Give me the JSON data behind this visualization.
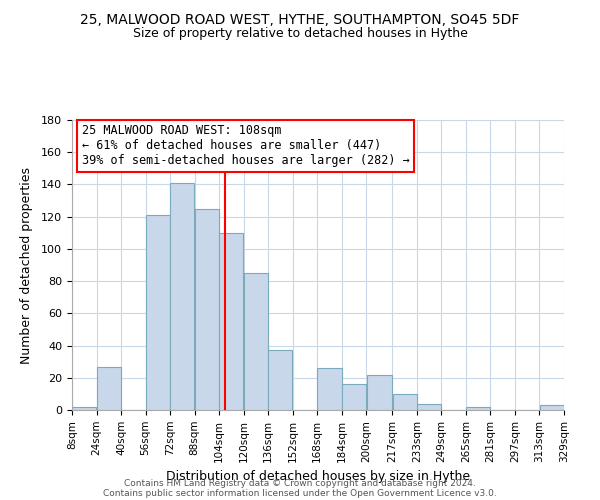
{
  "title": "25, MALWOOD ROAD WEST, HYTHE, SOUTHAMPTON, SO45 5DF",
  "subtitle": "Size of property relative to detached houses in Hythe",
  "xlabel": "Distribution of detached houses by size in Hythe",
  "ylabel": "Number of detached properties",
  "bar_color": "#c8d8ea",
  "bar_edgecolor": "#7aaabb",
  "grid_color": "#c8d8e8",
  "vline_x": 108,
  "vline_color": "red",
  "annotation_title": "25 MALWOOD ROAD WEST: 108sqm",
  "annotation_line1": "← 61% of detached houses are smaller (447)",
  "annotation_line2": "39% of semi-detached houses are larger (282) →",
  "annotation_box_edgecolor": "red",
  "bin_edges": [
    8,
    24,
    40,
    56,
    72,
    88,
    104,
    120,
    136,
    152,
    168,
    184,
    200,
    217,
    233,
    249,
    265,
    281,
    297,
    313,
    329
  ],
  "bin_counts": [
    2,
    27,
    0,
    121,
    141,
    125,
    110,
    85,
    37,
    0,
    26,
    16,
    22,
    10,
    4,
    0,
    2,
    0,
    0,
    3
  ],
  "tick_labels": [
    "8sqm",
    "24sqm",
    "40sqm",
    "56sqm",
    "72sqm",
    "88sqm",
    "104sqm",
    "120sqm",
    "136sqm",
    "152sqm",
    "168sqm",
    "184sqm",
    "200sqm",
    "217sqm",
    "233sqm",
    "249sqm",
    "265sqm",
    "281sqm",
    "297sqm",
    "313sqm",
    "329sqm"
  ],
  "ylim": [
    0,
    180
  ],
  "yticks": [
    0,
    20,
    40,
    60,
    80,
    100,
    120,
    140,
    160,
    180
  ],
  "footer_line1": "Contains HM Land Registry data © Crown copyright and database right 2024.",
  "footer_line2": "Contains public sector information licensed under the Open Government Licence v3.0.",
  "background_color": "#ffffff",
  "title_fontsize": 10,
  "subtitle_fontsize": 9
}
